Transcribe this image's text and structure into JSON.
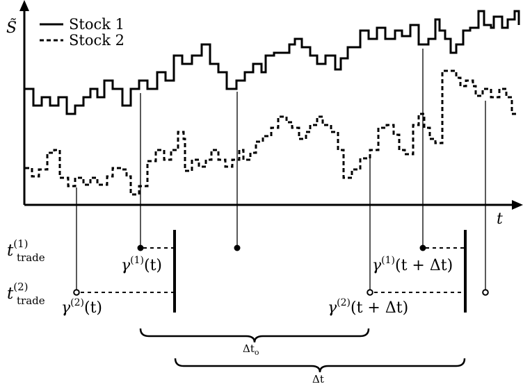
{
  "chart_data": {
    "type": "line",
    "y_axis_label": "S̃",
    "x_axis_label": "t",
    "legend": {
      "placement": "top-left",
      "entries": [
        {
          "label": "Stock 1",
          "style": "solid"
        },
        {
          "label": "Stock 2",
          "style": "dashed"
        }
      ]
    },
    "series": [
      {
        "name": "Stock 1",
        "style": "solid",
        "color": "#000000"
      },
      {
        "name": "Stock 2",
        "style": "dashed",
        "color": "#000000"
      }
    ]
  },
  "trade_rows": {
    "row1": {
      "base": "t",
      "sup": "(1)",
      "sub": "trade"
    },
    "row2": {
      "base": "t",
      "sup": "(2)",
      "sub": "trade"
    }
  },
  "annotations": {
    "gamma1_t": {
      "base": "γ",
      "sup": "(1)",
      "arg": "(t)"
    },
    "gamma2_t": {
      "base": "γ",
      "sup": "(2)",
      "arg": "(t)"
    },
    "gamma1_tdt": {
      "base": "γ",
      "sup": "(1)",
      "arg": "(t + Δt)"
    },
    "gamma2_tdt": {
      "base": "γ",
      "sup": "(2)",
      "arg": "(t + Δt)"
    }
  },
  "braces": {
    "dt_o": {
      "base": "Δt",
      "sub": "o"
    },
    "dt": {
      "base": "Δt"
    }
  }
}
